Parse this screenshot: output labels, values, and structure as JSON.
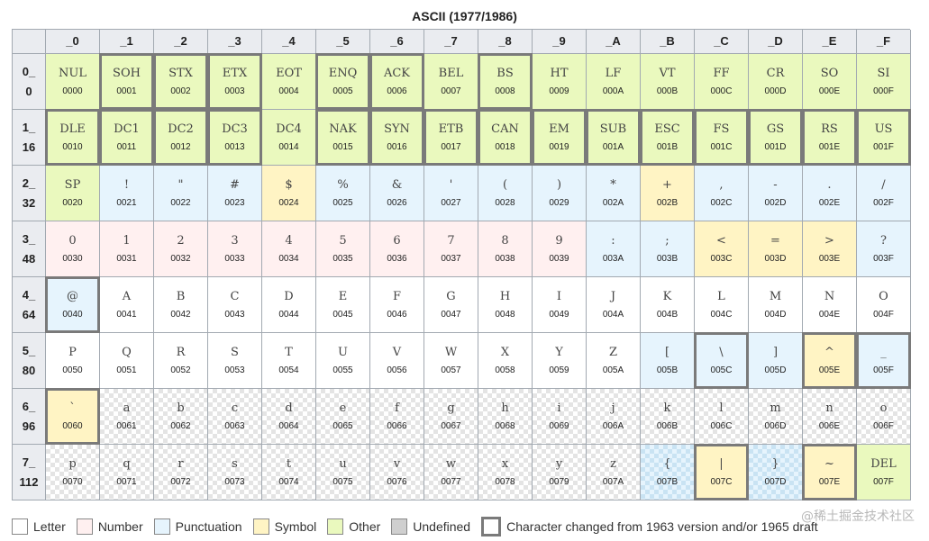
{
  "title": "ASCII (1977/1986)",
  "column_headers": [
    "_0",
    "_1",
    "_2",
    "_3",
    "_4",
    "_5",
    "_6",
    "_7",
    "_8",
    "_9",
    "_A",
    "_B",
    "_C",
    "_D",
    "_E",
    "_F"
  ],
  "row_headers": [
    {
      "hex": "0_",
      "dec": "0"
    },
    {
      "hex": "1_",
      "dec": "16"
    },
    {
      "hex": "2_",
      "dec": "32"
    },
    {
      "hex": "3_",
      "dec": "48"
    },
    {
      "hex": "4_",
      "dec": "64"
    },
    {
      "hex": "5_",
      "dec": "80"
    },
    {
      "hex": "6_",
      "dec": "96"
    },
    {
      "hex": "7_",
      "dec": "112"
    }
  ],
  "rows": [
    [
      {
        "c": "NUL",
        "code": "0000",
        "cat": "other",
        "changed": false
      },
      {
        "c": "SOH",
        "code": "0001",
        "cat": "other",
        "changed": true
      },
      {
        "c": "STX",
        "code": "0002",
        "cat": "other",
        "changed": true
      },
      {
        "c": "ETX",
        "code": "0003",
        "cat": "other",
        "changed": true
      },
      {
        "c": "EOT",
        "code": "0004",
        "cat": "other",
        "changed": false
      },
      {
        "c": "ENQ",
        "code": "0005",
        "cat": "other",
        "changed": true
      },
      {
        "c": "ACK",
        "code": "0006",
        "cat": "other",
        "changed": true
      },
      {
        "c": "BEL",
        "code": "0007",
        "cat": "other",
        "changed": false
      },
      {
        "c": "BS",
        "code": "0008",
        "cat": "other",
        "changed": true
      },
      {
        "c": "HT",
        "code": "0009",
        "cat": "other",
        "changed": false
      },
      {
        "c": "LF",
        "code": "000A",
        "cat": "other",
        "changed": false
      },
      {
        "c": "VT",
        "code": "000B",
        "cat": "other",
        "changed": false
      },
      {
        "c": "FF",
        "code": "000C",
        "cat": "other",
        "changed": false
      },
      {
        "c": "CR",
        "code": "000D",
        "cat": "other",
        "changed": false
      },
      {
        "c": "SO",
        "code": "000E",
        "cat": "other",
        "changed": false
      },
      {
        "c": "SI",
        "code": "000F",
        "cat": "other",
        "changed": false
      }
    ],
    [
      {
        "c": "DLE",
        "code": "0010",
        "cat": "other",
        "changed": true
      },
      {
        "c": "DC1",
        "code": "0011",
        "cat": "other",
        "changed": true
      },
      {
        "c": "DC2",
        "code": "0012",
        "cat": "other",
        "changed": true
      },
      {
        "c": "DC3",
        "code": "0013",
        "cat": "other",
        "changed": true
      },
      {
        "c": "DC4",
        "code": "0014",
        "cat": "other",
        "changed": false
      },
      {
        "c": "NAK",
        "code": "0015",
        "cat": "other",
        "changed": true
      },
      {
        "c": "SYN",
        "code": "0016",
        "cat": "other",
        "changed": true
      },
      {
        "c": "ETB",
        "code": "0017",
        "cat": "other",
        "changed": true
      },
      {
        "c": "CAN",
        "code": "0018",
        "cat": "other",
        "changed": true
      },
      {
        "c": "EM",
        "code": "0019",
        "cat": "other",
        "changed": true
      },
      {
        "c": "SUB",
        "code": "001A",
        "cat": "other",
        "changed": true
      },
      {
        "c": "ESC",
        "code": "001B",
        "cat": "other",
        "changed": true
      },
      {
        "c": "FS",
        "code": "001C",
        "cat": "other",
        "changed": true
      },
      {
        "c": "GS",
        "code": "001D",
        "cat": "other",
        "changed": true
      },
      {
        "c": "RS",
        "code": "001E",
        "cat": "other",
        "changed": true
      },
      {
        "c": "US",
        "code": "001F",
        "cat": "other",
        "changed": true
      }
    ],
    [
      {
        "c": "SP",
        "code": "0020",
        "cat": "other",
        "changed": false
      },
      {
        "c": "!",
        "code": "0021",
        "cat": "punct",
        "changed": false
      },
      {
        "c": "\"",
        "code": "0022",
        "cat": "punct",
        "changed": false
      },
      {
        "c": "#",
        "code": "0023",
        "cat": "punct",
        "changed": false
      },
      {
        "c": "$",
        "code": "0024",
        "cat": "symbol",
        "changed": false
      },
      {
        "c": "%",
        "code": "0025",
        "cat": "punct",
        "changed": false
      },
      {
        "c": "&",
        "code": "0026",
        "cat": "punct",
        "changed": false
      },
      {
        "c": "'",
        "code": "0027",
        "cat": "punct",
        "changed": false
      },
      {
        "c": "(",
        "code": "0028",
        "cat": "punct",
        "changed": false
      },
      {
        "c": ")",
        "code": "0029",
        "cat": "punct",
        "changed": false
      },
      {
        "c": "*",
        "code": "002A",
        "cat": "punct",
        "changed": false
      },
      {
        "c": "+",
        "code": "002B",
        "cat": "symbol",
        "changed": false
      },
      {
        "c": ",",
        "code": "002C",
        "cat": "punct",
        "changed": false
      },
      {
        "c": "-",
        "code": "002D",
        "cat": "punct",
        "changed": false
      },
      {
        "c": ".",
        "code": "002E",
        "cat": "punct",
        "changed": false
      },
      {
        "c": "/",
        "code": "002F",
        "cat": "punct",
        "changed": false
      }
    ],
    [
      {
        "c": "0",
        "code": "0030",
        "cat": "number",
        "changed": false
      },
      {
        "c": "1",
        "code": "0031",
        "cat": "number",
        "changed": false
      },
      {
        "c": "2",
        "code": "0032",
        "cat": "number",
        "changed": false
      },
      {
        "c": "3",
        "code": "0033",
        "cat": "number",
        "changed": false
      },
      {
        "c": "4",
        "code": "0034",
        "cat": "number",
        "changed": false
      },
      {
        "c": "5",
        "code": "0035",
        "cat": "number",
        "changed": false
      },
      {
        "c": "6",
        "code": "0036",
        "cat": "number",
        "changed": false
      },
      {
        "c": "7",
        "code": "0037",
        "cat": "number",
        "changed": false
      },
      {
        "c": "8",
        "code": "0038",
        "cat": "number",
        "changed": false
      },
      {
        "c": "9",
        "code": "0039",
        "cat": "number",
        "changed": false
      },
      {
        "c": ":",
        "code": "003A",
        "cat": "punct",
        "changed": false
      },
      {
        "c": ";",
        "code": "003B",
        "cat": "punct",
        "changed": false
      },
      {
        "c": "<",
        "code": "003C",
        "cat": "symbol",
        "changed": false
      },
      {
        "c": "=",
        "code": "003D",
        "cat": "symbol",
        "changed": false
      },
      {
        "c": ">",
        "code": "003E",
        "cat": "symbol",
        "changed": false
      },
      {
        "c": "?",
        "code": "003F",
        "cat": "punct",
        "changed": false
      }
    ],
    [
      {
        "c": "@",
        "code": "0040",
        "cat": "punct",
        "changed": true
      },
      {
        "c": "A",
        "code": "0041",
        "cat": "letter",
        "changed": false
      },
      {
        "c": "B",
        "code": "0042",
        "cat": "letter",
        "changed": false
      },
      {
        "c": "C",
        "code": "0043",
        "cat": "letter",
        "changed": false
      },
      {
        "c": "D",
        "code": "0044",
        "cat": "letter",
        "changed": false
      },
      {
        "c": "E",
        "code": "0045",
        "cat": "letter",
        "changed": false
      },
      {
        "c": "F",
        "code": "0046",
        "cat": "letter",
        "changed": false
      },
      {
        "c": "G",
        "code": "0047",
        "cat": "letter",
        "changed": false
      },
      {
        "c": "H",
        "code": "0048",
        "cat": "letter",
        "changed": false
      },
      {
        "c": "I",
        "code": "0049",
        "cat": "letter",
        "changed": false
      },
      {
        "c": "J",
        "code": "004A",
        "cat": "letter",
        "changed": false
      },
      {
        "c": "K",
        "code": "004B",
        "cat": "letter",
        "changed": false
      },
      {
        "c": "L",
        "code": "004C",
        "cat": "letter",
        "changed": false
      },
      {
        "c": "M",
        "code": "004D",
        "cat": "letter",
        "changed": false
      },
      {
        "c": "N",
        "code": "004E",
        "cat": "letter",
        "changed": false
      },
      {
        "c": "O",
        "code": "004F",
        "cat": "letter",
        "changed": false
      }
    ],
    [
      {
        "c": "P",
        "code": "0050",
        "cat": "letter",
        "changed": false
      },
      {
        "c": "Q",
        "code": "0051",
        "cat": "letter",
        "changed": false
      },
      {
        "c": "R",
        "code": "0052",
        "cat": "letter",
        "changed": false
      },
      {
        "c": "S",
        "code": "0053",
        "cat": "letter",
        "changed": false
      },
      {
        "c": "T",
        "code": "0054",
        "cat": "letter",
        "changed": false
      },
      {
        "c": "U",
        "code": "0055",
        "cat": "letter",
        "changed": false
      },
      {
        "c": "V",
        "code": "0056",
        "cat": "letter",
        "changed": false
      },
      {
        "c": "W",
        "code": "0057",
        "cat": "letter",
        "changed": false
      },
      {
        "c": "X",
        "code": "0058",
        "cat": "letter",
        "changed": false
      },
      {
        "c": "Y",
        "code": "0059",
        "cat": "letter",
        "changed": false
      },
      {
        "c": "Z",
        "code": "005A",
        "cat": "letter",
        "changed": false
      },
      {
        "c": "[",
        "code": "005B",
        "cat": "punct",
        "changed": false
      },
      {
        "c": "\\",
        "code": "005C",
        "cat": "punct",
        "changed": true
      },
      {
        "c": "]",
        "code": "005D",
        "cat": "punct",
        "changed": false
      },
      {
        "c": "^",
        "code": "005E",
        "cat": "symbol",
        "changed": true
      },
      {
        "c": "_",
        "code": "005F",
        "cat": "punct",
        "changed": true
      }
    ],
    [
      {
        "c": "`",
        "code": "0060",
        "cat": "symbol",
        "changed": true
      },
      {
        "c": "a",
        "code": "0061",
        "cat": "letter",
        "changed": false,
        "checker": true
      },
      {
        "c": "b",
        "code": "0062",
        "cat": "letter",
        "changed": false,
        "checker": true
      },
      {
        "c": "c",
        "code": "0063",
        "cat": "letter",
        "changed": false,
        "checker": true
      },
      {
        "c": "d",
        "code": "0064",
        "cat": "letter",
        "changed": false,
        "checker": true
      },
      {
        "c": "e",
        "code": "0065",
        "cat": "letter",
        "changed": false,
        "checker": true
      },
      {
        "c": "f",
        "code": "0066",
        "cat": "letter",
        "changed": false,
        "checker": true
      },
      {
        "c": "g",
        "code": "0067",
        "cat": "letter",
        "changed": false,
        "checker": true
      },
      {
        "c": "h",
        "code": "0068",
        "cat": "letter",
        "changed": false,
        "checker": true
      },
      {
        "c": "i",
        "code": "0069",
        "cat": "letter",
        "changed": false,
        "checker": true
      },
      {
        "c": "j",
        "code": "006A",
        "cat": "letter",
        "changed": false,
        "checker": true
      },
      {
        "c": "k",
        "code": "006B",
        "cat": "letter",
        "changed": false,
        "checker": true
      },
      {
        "c": "l",
        "code": "006C",
        "cat": "letter",
        "changed": false,
        "checker": true
      },
      {
        "c": "m",
        "code": "006D",
        "cat": "letter",
        "changed": false,
        "checker": true
      },
      {
        "c": "n",
        "code": "006E",
        "cat": "letter",
        "changed": false,
        "checker": true
      },
      {
        "c": "o",
        "code": "006F",
        "cat": "letter",
        "changed": false,
        "checker": true
      }
    ],
    [
      {
        "c": "p",
        "code": "0070",
        "cat": "letter",
        "changed": false,
        "checker": true
      },
      {
        "c": "q",
        "code": "0071",
        "cat": "letter",
        "changed": false,
        "checker": true
      },
      {
        "c": "r",
        "code": "0072",
        "cat": "letter",
        "changed": false,
        "checker": true
      },
      {
        "c": "s",
        "code": "0073",
        "cat": "letter",
        "changed": false,
        "checker": true
      },
      {
        "c": "t",
        "code": "0074",
        "cat": "letter",
        "changed": false,
        "checker": true
      },
      {
        "c": "u",
        "code": "0075",
        "cat": "letter",
        "changed": false,
        "checker": true
      },
      {
        "c": "v",
        "code": "0076",
        "cat": "letter",
        "changed": false,
        "checker": true
      },
      {
        "c": "w",
        "code": "0077",
        "cat": "letter",
        "changed": false,
        "checker": true
      },
      {
        "c": "x",
        "code": "0078",
        "cat": "letter",
        "changed": false,
        "checker": true
      },
      {
        "c": "y",
        "code": "0079",
        "cat": "letter",
        "changed": false,
        "checker": true
      },
      {
        "c": "z",
        "code": "007A",
        "cat": "letter",
        "changed": false,
        "checker": true
      },
      {
        "c": "{",
        "code": "007B",
        "cat": "punct",
        "changed": false,
        "checker": true
      },
      {
        "c": "|",
        "code": "007C",
        "cat": "symbol",
        "changed": true
      },
      {
        "c": "}",
        "code": "007D",
        "cat": "punct",
        "changed": false,
        "checker": true
      },
      {
        "c": "~",
        "code": "007E",
        "cat": "symbol",
        "changed": true
      },
      {
        "c": "DEL",
        "code": "007F",
        "cat": "other",
        "changed": false
      }
    ]
  ],
  "legend": {
    "letter": "Letter",
    "number": "Number",
    "punctuation": "Punctuation",
    "symbol": "Symbol",
    "other": "Other",
    "undefined": "Undefined",
    "changed": "Character changed from 1963 version and/or 1965 draft"
  },
  "watermark": "@稀土掘金技术社区",
  "colors": {
    "letter": "#ffffff",
    "number": "#fff0f0",
    "punctuation": "#e6f4fd",
    "symbol": "#fff4c4",
    "other": "#eaf9be",
    "undefined": "#cfcfcf",
    "header": "#eaecf0",
    "changed_border": "#7a7a7a"
  }
}
